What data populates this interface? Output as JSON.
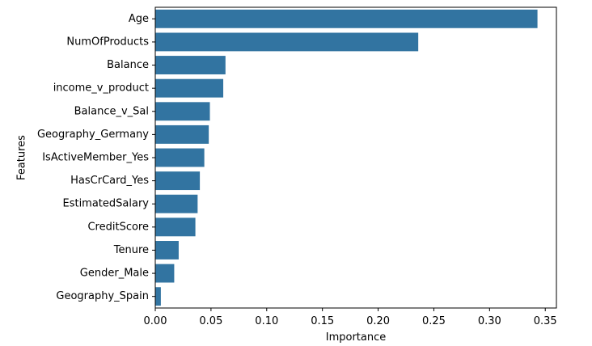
{
  "chart_data": {
    "type": "bar",
    "orientation": "horizontal",
    "categories": [
      "Age",
      "NumOfProducts",
      "Balance",
      "income_v_product",
      "Balance_v_Sal",
      "Geography_Germany",
      "IsActiveMember_Yes",
      "HasCrCard_Yes",
      "EstimatedSalary",
      "CreditScore",
      "Tenure",
      "Gender_Male",
      "Geography_Spain"
    ],
    "values": [
      0.343,
      0.236,
      0.063,
      0.061,
      0.049,
      0.048,
      0.044,
      0.04,
      0.038,
      0.036,
      0.021,
      0.017,
      0.005
    ],
    "xlabel": "Importance",
    "ylabel": "Features",
    "xlim": [
      0,
      0.36
    ],
    "xticks": [
      0.0,
      0.05,
      0.1,
      0.15,
      0.2,
      0.25,
      0.3,
      0.35
    ],
    "xtick_labels": [
      "0.00",
      "0.05",
      "0.10",
      "0.15",
      "0.20",
      "0.25",
      "0.30",
      "0.35"
    ],
    "grid": false,
    "colors": {
      "bar": "#3274a1",
      "axis": "#000000"
    }
  }
}
